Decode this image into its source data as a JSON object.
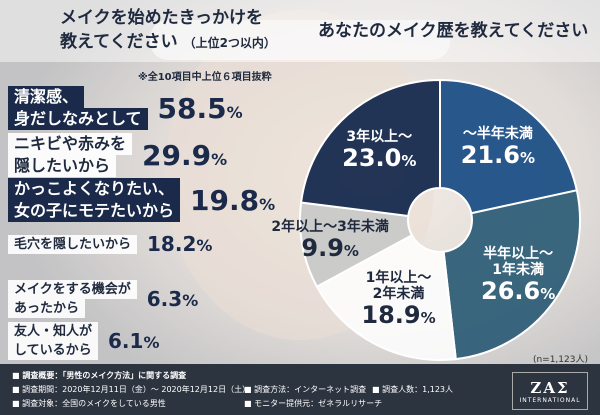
{
  "header": {
    "left_question_line1": "メイクを始めたきっかけを",
    "left_question_line2": "教えてください",
    "left_question_sub": "（上位2つ以内）",
    "right_question": "あなたのメイク歴を教えてください",
    "note": "※全10項目中上位６項目抜粋"
  },
  "chart_data": [
    {
      "type": "bar",
      "categories": [
        "清潔感、身だしなみとして",
        "ニキビや赤みを隠したいから",
        "かっこよくなりたい、女の子にモテたいから",
        "毛穴を隠したいから",
        "メイクをする機会があったから",
        "友人・知人がしているから"
      ],
      "label_lines": [
        [
          "清潔感、",
          "身だしなみとして"
        ],
        [
          "ニキビや赤みを",
          "隠したいから"
        ],
        [
          "かっこよくなりたい、",
          "女の子にモテたいから"
        ],
        [
          "毛穴を隠したいから"
        ],
        [
          "メイクをする機会が",
          "あったから"
        ],
        [
          "友人・知人が",
          "しているから"
        ]
      ],
      "values": [
        58.5,
        29.9,
        19.8,
        18.2,
        6.3,
        6.1
      ],
      "value_labels": [
        "58.5",
        "29.9",
        "19.8",
        "18.2",
        "6.3",
        "6.1"
      ],
      "unit": "%"
    },
    {
      "type": "pie",
      "categories": [
        "〜半年未満",
        "半年以上〜1年未満",
        "1年以上〜2年未満",
        "2年以上〜3年未満",
        "3年以上〜"
      ],
      "label_lines": [
        [
          "〜半年未満"
        ],
        [
          "半年以上〜",
          "1年未満"
        ],
        [
          "1年以上〜",
          "2年未満"
        ],
        [
          "2年以上〜3年未満"
        ],
        [
          "3年以上〜"
        ]
      ],
      "values": [
        21.6,
        26.6,
        18.9,
        9.9,
        23.0
      ],
      "value_labels": [
        "21.6",
        "26.6",
        "18.9",
        "9.9",
        "23.0"
      ],
      "unit": "%",
      "colors": [
        "#1d4f86",
        "#2f5f78",
        "#ffffff",
        "#c9c9c9",
        "#172a4e"
      ],
      "n_label": "(n=1,123人)"
    }
  ],
  "footer": {
    "summary": "■ 調査概要：「男性のメイク方法」に関する調査",
    "period": "■ 調査期間：2020年12月11日（金）〜 2020年12月12日（土）",
    "method": "■ 調査方法：インターネット調査",
    "count": "■ 調査人数：1,123人",
    "target": "■ 調査対象：全国のメイクをしている男性",
    "provider": "■ モニター提供元：ゼネラルリサーチ"
  },
  "logo": {
    "text": "ZAΣ",
    "sub": "INTERNATIONAL"
  }
}
